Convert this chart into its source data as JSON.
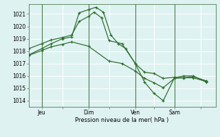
{
  "background_color": "#dff2f2",
  "grid_color": "#ffffff",
  "line_color": "#2d6e2d",
  "xlabel": "Pression niveau de la mer( hPa )",
  "xlim": [
    0,
    10
  ],
  "ylim": [
    1013.5,
    1021.8
  ],
  "yticks": [
    1014,
    1015,
    1016,
    1017,
    1018,
    1019,
    1020,
    1021
  ],
  "xtick_labels": [
    "Jeu",
    "",
    "Dim",
    "",
    "Ven",
    "",
    "Sam",
    ""
  ],
  "xtick_positions": [
    0.7,
    1.8,
    3.2,
    4.3,
    5.7,
    6.7,
    7.8,
    9.2
  ],
  "vlines": [
    0.7,
    3.2,
    5.7,
    7.8
  ],
  "line1_x": [
    0.0,
    0.7,
    1.2,
    1.8,
    2.3,
    2.7,
    3.2,
    3.6,
    4.0,
    4.4,
    4.8,
    5.2,
    5.7,
    6.2,
    6.7,
    7.2,
    7.8,
    8.3,
    8.8,
    9.5
  ],
  "line1_y": [
    1017.7,
    1018.2,
    1018.6,
    1019.0,
    1019.15,
    1021.1,
    1021.35,
    1021.55,
    1021.15,
    1019.3,
    1018.6,
    1018.2,
    1017.0,
    1016.3,
    1016.2,
    1015.8,
    1015.9,
    1015.85,
    1015.95,
    1015.6
  ],
  "line2_x": [
    0.0,
    0.7,
    1.2,
    1.8,
    2.3,
    2.7,
    3.2,
    3.5,
    3.9,
    4.3,
    5.0,
    5.7,
    6.2,
    6.7,
    7.2,
    7.8,
    8.3,
    8.8,
    9.5
  ],
  "line2_y": [
    1018.2,
    1018.6,
    1018.9,
    1019.1,
    1019.3,
    1020.4,
    1020.8,
    1021.15,
    1020.7,
    1018.85,
    1018.6,
    1017.0,
    1015.5,
    1014.6,
    1014.0,
    1015.85,
    1016.0,
    1016.0,
    1015.5
  ],
  "line3_x": [
    0.0,
    0.7,
    1.2,
    1.8,
    2.3,
    3.2,
    4.3,
    5.0,
    5.7,
    6.2,
    6.7,
    7.2,
    7.8,
    8.3,
    8.8,
    9.5
  ],
  "line3_y": [
    1017.65,
    1018.05,
    1018.35,
    1018.55,
    1018.75,
    1018.4,
    1017.2,
    1017.0,
    1016.4,
    1015.8,
    1015.45,
    1015.05,
    1015.8,
    1015.85,
    1015.85,
    1015.55
  ]
}
